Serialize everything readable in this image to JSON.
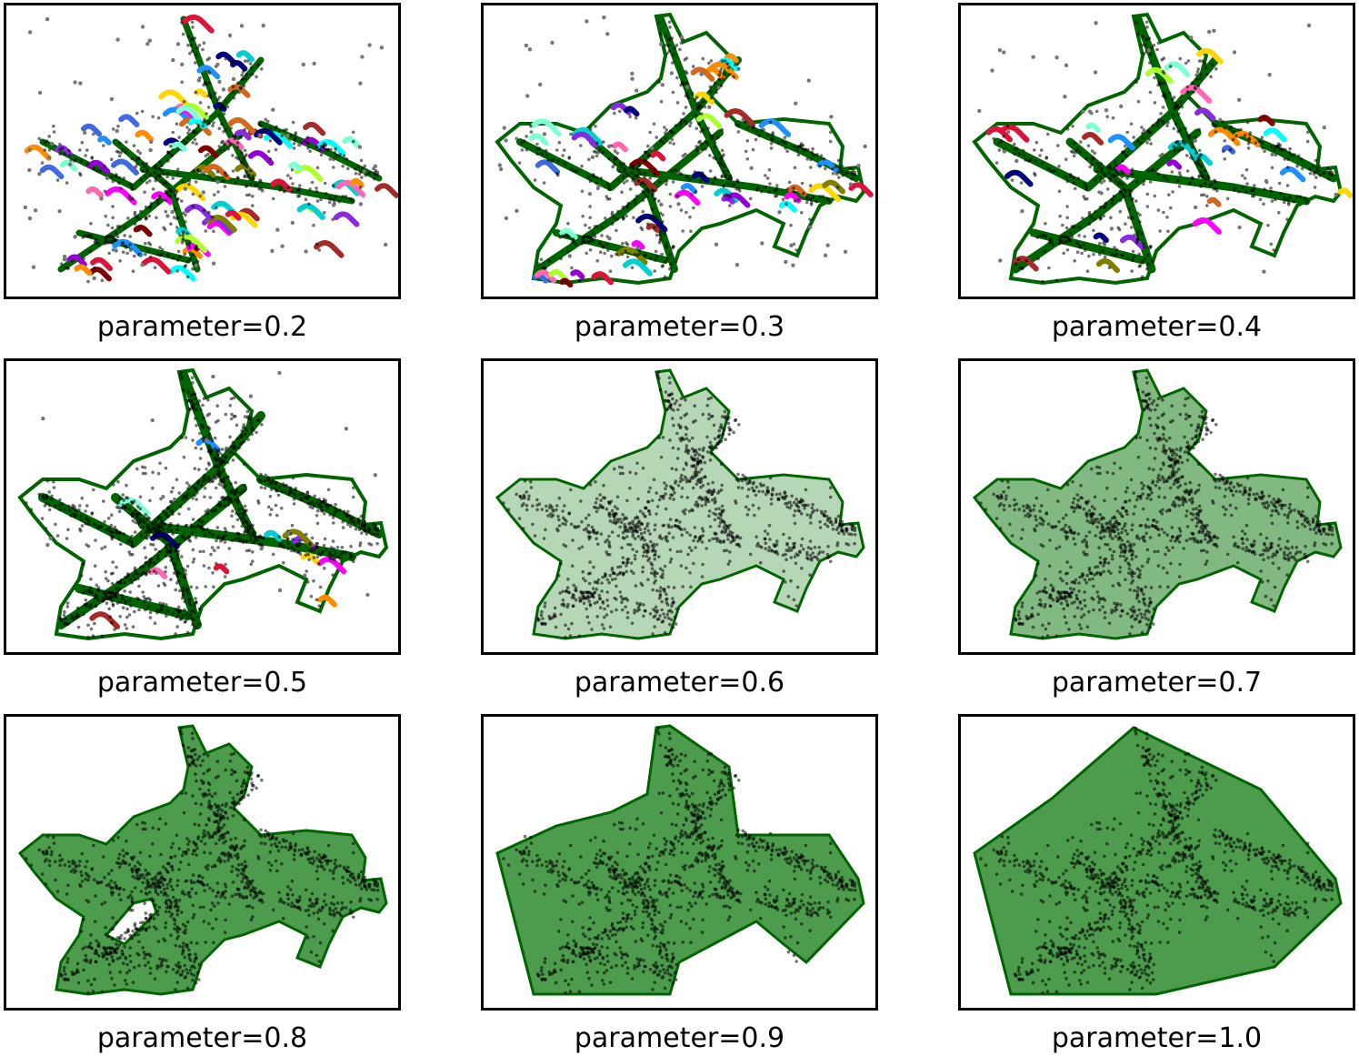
{
  "chart_data": {
    "type": "scatter",
    "description_ordering": "row-major 3x3 grid of subplots",
    "colors": {
      "main_region": "#006400",
      "main_fill": "#2e8b2e",
      "points": "#000000",
      "noise_points": "#777777",
      "clusters": [
        "#ff00ff",
        "#00ced1",
        "#8a2be2",
        "#dc143c",
        "#000080",
        "#ff8c00",
        "#a52a2a",
        "#7fffd4",
        "#1e90ff",
        "#ffd700",
        "#808000",
        "#ff69b4",
        "#9400d3",
        "#adff2f",
        "#d2691e",
        "#00ffff",
        "#800000",
        "#4169e1"
      ]
    },
    "subplots": [
      {
        "label": "parameter=0.2",
        "parameter": 0.2,
        "num_side_clusters": 80,
        "main_fill": false
      },
      {
        "label": "parameter=0.3",
        "parameter": 0.3,
        "num_side_clusters": 45,
        "main_fill": false
      },
      {
        "label": "parameter=0.4",
        "parameter": 0.4,
        "num_side_clusters": 28,
        "main_fill": false
      },
      {
        "label": "parameter=0.5",
        "parameter": 0.5,
        "num_side_clusters": 12,
        "main_fill": false
      },
      {
        "label": "parameter=0.6",
        "parameter": 0.6,
        "num_side_clusters": 0,
        "main_fill": "partial"
      },
      {
        "label": "parameter=0.7",
        "parameter": 0.7,
        "num_side_clusters": 0,
        "main_fill": "mostly"
      },
      {
        "label": "parameter=0.8",
        "parameter": 0.8,
        "num_side_clusters": 0,
        "main_fill": "concave"
      },
      {
        "label": "parameter=0.9",
        "parameter": 0.9,
        "num_side_clusters": 0,
        "main_fill": "near-convex"
      },
      {
        "label": "parameter=1.0",
        "parameter": 1.0,
        "num_side_clusters": 0,
        "main_fill": "convex"
      }
    ]
  }
}
